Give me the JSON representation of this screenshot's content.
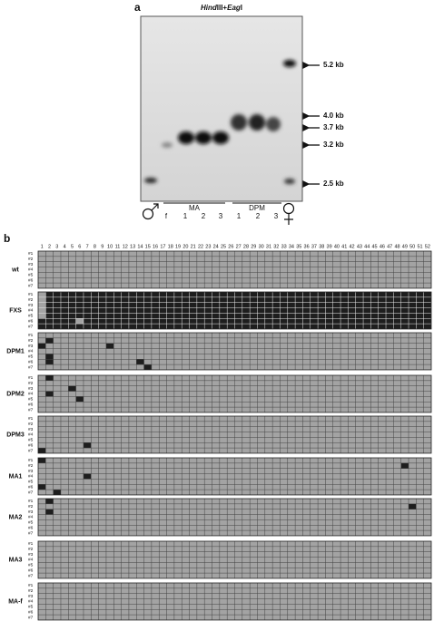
{
  "panel_a": {
    "label": "a",
    "title": [
      "Hind",
      "III+",
      "Eag",
      "I"
    ],
    "markers": [
      "5.2 kb",
      "4.0 kb",
      "3.7 kb",
      "3.2 kb",
      "2.5 kb"
    ],
    "groups": [
      {
        "name": "MA",
        "lanes": [
          "f",
          "1",
          "2",
          "3"
        ]
      },
      {
        "name": "DPM",
        "lanes": [
          "1",
          "2",
          "3"
        ]
      }
    ]
  },
  "panel_b": {
    "label": "b",
    "columns": [
      1,
      2,
      3,
      4,
      5,
      6,
      7,
      8,
      9,
      10,
      11,
      12,
      13,
      14,
      15,
      16,
      17,
      18,
      19,
      20,
      21,
      22,
      23,
      24,
      25,
      26,
      27,
      28,
      29,
      30,
      31,
      32,
      33,
      34,
      35,
      36,
      37,
      38,
      39,
      40,
      41,
      42,
      43,
      44,
      45,
      46,
      47,
      48,
      49,
      50,
      51,
      52
    ],
    "row_labels": [
      "#1",
      "#2",
      "#3",
      "#4",
      "#5",
      "#6",
      "#7"
    ],
    "colors": {
      "methylated": "#1e1e1e",
      "unmethylated": "#a3a3a3"
    },
    "samples": [
      {
        "name": "wt",
        "background": "unmethylated",
        "exceptions": []
      },
      {
        "name": "FXS",
        "background": "methylated",
        "exceptions": [
          [
            1,
            1
          ],
          [
            2,
            1
          ],
          [
            3,
            1
          ],
          [
            4,
            1
          ],
          [
            5,
            1
          ],
          [
            6,
            6
          ]
        ]
      },
      {
        "name": "DPM1",
        "background": "unmethylated",
        "exceptions": [
          [
            2,
            2
          ],
          [
            3,
            1
          ],
          [
            5,
            2
          ],
          [
            6,
            2
          ],
          [
            3,
            10
          ],
          [
            6,
            14
          ],
          [
            7,
            15
          ]
        ]
      },
      {
        "name": "DPM2",
        "background": "unmethylated",
        "exceptions": [
          [
            1,
            2
          ],
          [
            3,
            5
          ],
          [
            4,
            2
          ],
          [
            5,
            6
          ]
        ]
      },
      {
        "name": "DPM3",
        "background": "unmethylated",
        "exceptions": [
          [
            6,
            7
          ],
          [
            7,
            1
          ]
        ]
      },
      {
        "name": "MA1",
        "background": "unmethylated",
        "exceptions": [
          [
            1,
            1
          ],
          [
            4,
            7
          ],
          [
            6,
            1
          ],
          [
            7,
            3
          ],
          [
            2,
            49
          ]
        ]
      },
      {
        "name": "MA2",
        "background": "unmethylated",
        "exceptions": [
          [
            1,
            2
          ],
          [
            3,
            2
          ],
          [
            2,
            50
          ]
        ]
      },
      {
        "name": "MA3",
        "background": "unmethylated",
        "exceptions": []
      },
      {
        "name": "MA-f",
        "background": "unmethylated",
        "exceptions": []
      }
    ]
  }
}
